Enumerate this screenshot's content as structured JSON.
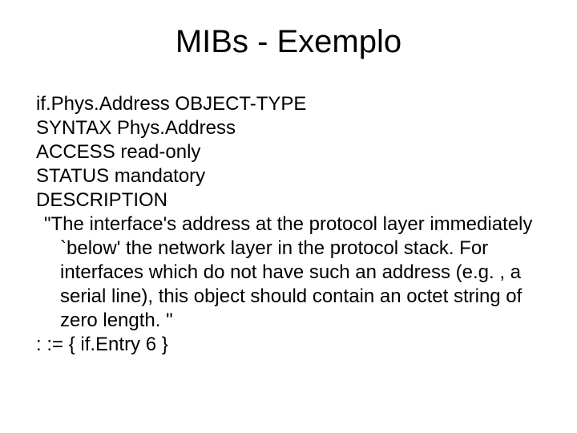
{
  "title": "MIBs - Exemplo",
  "line1": "if.Phys.Address OBJECT-TYPE",
  "line2": "SYNTAX  Phys.Address",
  "line3": "ACCESS  read-only",
  "line4": "STATUS  mandatory",
  "line5": "DESCRIPTION",
  "line6": "\"The interface's address at the protocol layer immediately `below' the network layer in the protocol stack.  For interfaces which do not have such an address (e.g. , a serial line), this object should contain an octet string of zero length. \"",
  "line7": ": := { if.Entry 6 }"
}
